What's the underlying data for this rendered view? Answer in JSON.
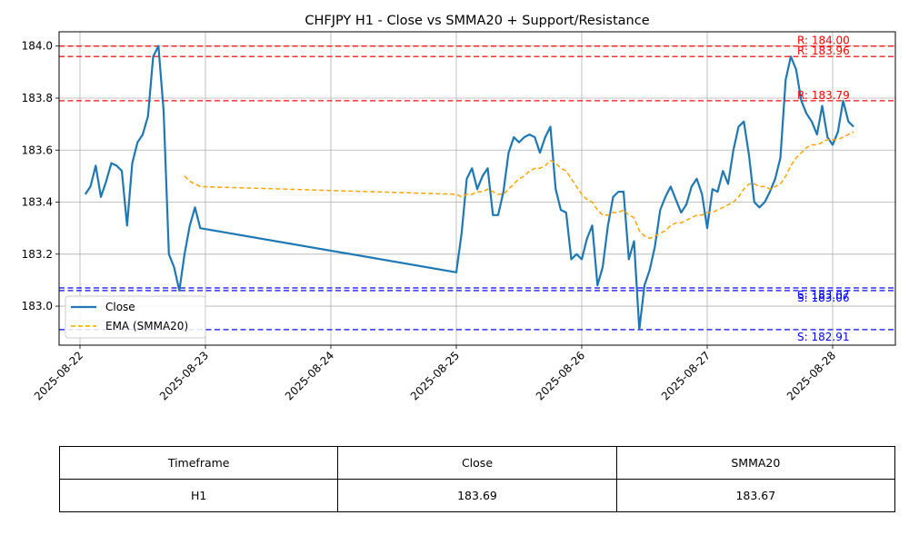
{
  "chart_data": {
    "type": "line",
    "title": "CHFJPY H1 - Close vs SMMA20 + Support/Resistance",
    "xlabel": "",
    "ylabel": "",
    "xlim": [
      "2025-08-21 20:00",
      "2025-08-28 12:00"
    ],
    "ylim": [
      182.85,
      184.055
    ],
    "grid": true,
    "legend_position": "lower-left",
    "x_ticks": [
      "2025-08-22",
      "2025-08-23",
      "2025-08-24",
      "2025-08-25",
      "2025-08-26",
      "2025-08-27",
      "2025-08-28"
    ],
    "y_ticks": [
      "183.0",
      "183.2",
      "183.4",
      "183.6",
      "183.8",
      "184.0"
    ],
    "series": [
      {
        "name": "Close",
        "color": "#1f77b4",
        "style": "solid",
        "points": [
          [
            "2025-08-22 01:00",
            183.43
          ],
          [
            "2025-08-22 02:00",
            183.46
          ],
          [
            "2025-08-22 03:00",
            183.54
          ],
          [
            "2025-08-22 04:00",
            183.42
          ],
          [
            "2025-08-22 05:00",
            183.48
          ],
          [
            "2025-08-22 06:00",
            183.55
          ],
          [
            "2025-08-22 07:00",
            183.54
          ],
          [
            "2025-08-22 08:00",
            183.52
          ],
          [
            "2025-08-22 09:00",
            183.31
          ],
          [
            "2025-08-22 10:00",
            183.55
          ],
          [
            "2025-08-22 11:00",
            183.63
          ],
          [
            "2025-08-22 12:00",
            183.66
          ],
          [
            "2025-08-22 13:00",
            183.73
          ],
          [
            "2025-08-22 14:00",
            183.96
          ],
          [
            "2025-08-22 15:00",
            184.0
          ],
          [
            "2025-08-22 16:00",
            183.75
          ],
          [
            "2025-08-22 17:00",
            183.2
          ],
          [
            "2025-08-22 18:00",
            183.15
          ],
          [
            "2025-08-22 19:00",
            183.06
          ],
          [
            "2025-08-22 20:00",
            183.2
          ],
          [
            "2025-08-22 21:00",
            183.31
          ],
          [
            "2025-08-22 22:00",
            183.38
          ],
          [
            "2025-08-22 23:00",
            183.3
          ],
          [
            "2025-08-25 00:00",
            183.13
          ],
          [
            "2025-08-25 01:00",
            183.28
          ],
          [
            "2025-08-25 02:00",
            183.49
          ],
          [
            "2025-08-25 03:00",
            183.53
          ],
          [
            "2025-08-25 04:00",
            183.45
          ],
          [
            "2025-08-25 05:00",
            183.5
          ],
          [
            "2025-08-25 06:00",
            183.53
          ],
          [
            "2025-08-25 07:00",
            183.35
          ],
          [
            "2025-08-25 08:00",
            183.35
          ],
          [
            "2025-08-25 09:00",
            183.44
          ],
          [
            "2025-08-25 10:00",
            183.59
          ],
          [
            "2025-08-25 11:00",
            183.65
          ],
          [
            "2025-08-25 12:00",
            183.63
          ],
          [
            "2025-08-25 13:00",
            183.65
          ],
          [
            "2025-08-25 14:00",
            183.66
          ],
          [
            "2025-08-25 15:00",
            183.65
          ],
          [
            "2025-08-25 16:00",
            183.59
          ],
          [
            "2025-08-25 17:00",
            183.65
          ],
          [
            "2025-08-25 18:00",
            183.69
          ],
          [
            "2025-08-25 19:00",
            183.45
          ],
          [
            "2025-08-25 20:00",
            183.37
          ],
          [
            "2025-08-25 21:00",
            183.36
          ],
          [
            "2025-08-25 22:00",
            183.18
          ],
          [
            "2025-08-25 23:00",
            183.2
          ],
          [
            "2025-08-26 00:00",
            183.18
          ],
          [
            "2025-08-26 01:00",
            183.26
          ],
          [
            "2025-08-26 02:00",
            183.31
          ],
          [
            "2025-08-26 03:00",
            183.08
          ],
          [
            "2025-08-26 04:00",
            183.15
          ],
          [
            "2025-08-26 05:00",
            183.31
          ],
          [
            "2025-08-26 06:00",
            183.42
          ],
          [
            "2025-08-26 07:00",
            183.44
          ],
          [
            "2025-08-26 08:00",
            183.44
          ],
          [
            "2025-08-26 09:00",
            183.18
          ],
          [
            "2025-08-26 10:00",
            183.25
          ],
          [
            "2025-08-26 11:00",
            182.91
          ],
          [
            "2025-08-26 12:00",
            183.08
          ],
          [
            "2025-08-26 13:00",
            183.14
          ],
          [
            "2025-08-26 14:00",
            183.23
          ],
          [
            "2025-08-26 15:00",
            183.37
          ],
          [
            "2025-08-26 16:00",
            183.42
          ],
          [
            "2025-08-26 17:00",
            183.46
          ],
          [
            "2025-08-26 18:00",
            183.41
          ],
          [
            "2025-08-26 19:00",
            183.36
          ],
          [
            "2025-08-26 20:00",
            183.39
          ],
          [
            "2025-08-26 21:00",
            183.46
          ],
          [
            "2025-08-26 22:00",
            183.49
          ],
          [
            "2025-08-26 23:00",
            183.43
          ],
          [
            "2025-08-27 00:00",
            183.3
          ],
          [
            "2025-08-27 01:00",
            183.45
          ],
          [
            "2025-08-27 02:00",
            183.44
          ],
          [
            "2025-08-27 03:00",
            183.52
          ],
          [
            "2025-08-27 04:00",
            183.47
          ],
          [
            "2025-08-27 05:00",
            183.6
          ],
          [
            "2025-08-27 06:00",
            183.69
          ],
          [
            "2025-08-27 07:00",
            183.71
          ],
          [
            "2025-08-27 08:00",
            183.58
          ],
          [
            "2025-08-27 09:00",
            183.4
          ],
          [
            "2025-08-27 10:00",
            183.38
          ],
          [
            "2025-08-27 11:00",
            183.4
          ],
          [
            "2025-08-27 12:00",
            183.44
          ],
          [
            "2025-08-27 13:00",
            183.49
          ],
          [
            "2025-08-27 14:00",
            183.57
          ],
          [
            "2025-08-27 15:00",
            183.87
          ],
          [
            "2025-08-27 16:00",
            183.96
          ],
          [
            "2025-08-27 17:00",
            183.91
          ],
          [
            "2025-08-27 18:00",
            183.79
          ],
          [
            "2025-08-27 19:00",
            183.74
          ],
          [
            "2025-08-27 20:00",
            183.71
          ],
          [
            "2025-08-27 21:00",
            183.66
          ],
          [
            "2025-08-27 22:00",
            183.77
          ],
          [
            "2025-08-27 23:00",
            183.65
          ],
          [
            "2025-08-28 00:00",
            183.62
          ],
          [
            "2025-08-28 01:00",
            183.67
          ],
          [
            "2025-08-28 02:00",
            183.79
          ],
          [
            "2025-08-28 03:00",
            183.71
          ],
          [
            "2025-08-28 04:00",
            183.69
          ]
        ]
      },
      {
        "name": "EMA (SMMA20)",
        "color": "#ffa500",
        "style": "dashed",
        "points": [
          [
            "2025-08-22 20:00",
            183.5
          ],
          [
            "2025-08-22 21:00",
            183.48
          ],
          [
            "2025-08-22 22:00",
            183.47
          ],
          [
            "2025-08-22 23:00",
            183.46
          ],
          [
            "2025-08-25 00:00",
            183.43
          ],
          [
            "2025-08-25 01:00",
            183.42
          ],
          [
            "2025-08-25 02:00",
            183.43
          ],
          [
            "2025-08-25 03:00",
            183.43
          ],
          [
            "2025-08-25 04:00",
            183.44
          ],
          [
            "2025-08-25 05:00",
            183.44
          ],
          [
            "2025-08-25 06:00",
            183.45
          ],
          [
            "2025-08-25 07:00",
            183.44
          ],
          [
            "2025-08-25 08:00",
            183.43
          ],
          [
            "2025-08-25 09:00",
            183.43
          ],
          [
            "2025-08-25 10:00",
            183.45
          ],
          [
            "2025-08-25 11:00",
            183.47
          ],
          [
            "2025-08-25 12:00",
            183.49
          ],
          [
            "2025-08-25 13:00",
            183.5
          ],
          [
            "2025-08-25 14:00",
            183.52
          ],
          [
            "2025-08-25 15:00",
            183.53
          ],
          [
            "2025-08-25 16:00",
            183.53
          ],
          [
            "2025-08-25 17:00",
            183.54
          ],
          [
            "2025-08-25 18:00",
            183.56
          ],
          [
            "2025-08-25 19:00",
            183.55
          ],
          [
            "2025-08-25 20:00",
            183.53
          ],
          [
            "2025-08-25 21:00",
            183.52
          ],
          [
            "2025-08-25 22:00",
            183.49
          ],
          [
            "2025-08-25 23:00",
            183.46
          ],
          [
            "2025-08-26 00:00",
            183.43
          ],
          [
            "2025-08-26 01:00",
            183.41
          ],
          [
            "2025-08-26 02:00",
            183.4
          ],
          [
            "2025-08-26 03:00",
            183.37
          ],
          [
            "2025-08-26 04:00",
            183.35
          ],
          [
            "2025-08-26 05:00",
            183.35
          ],
          [
            "2025-08-26 06:00",
            183.36
          ],
          [
            "2025-08-26 07:00",
            183.36
          ],
          [
            "2025-08-26 08:00",
            183.37
          ],
          [
            "2025-08-26 09:00",
            183.35
          ],
          [
            "2025-08-26 10:00",
            183.34
          ],
          [
            "2025-08-26 11:00",
            183.29
          ],
          [
            "2025-08-26 12:00",
            183.27
          ],
          [
            "2025-08-26 13:00",
            183.26
          ],
          [
            "2025-08-26 14:00",
            183.27
          ],
          [
            "2025-08-26 15:00",
            183.28
          ],
          [
            "2025-08-26 16:00",
            183.29
          ],
          [
            "2025-08-26 17:00",
            183.31
          ],
          [
            "2025-08-26 18:00",
            183.32
          ],
          [
            "2025-08-26 19:00",
            183.32
          ],
          [
            "2025-08-26 20:00",
            183.33
          ],
          [
            "2025-08-26 21:00",
            183.34
          ],
          [
            "2025-08-26 22:00",
            183.35
          ],
          [
            "2025-08-26 23:00",
            183.35
          ],
          [
            "2025-08-27 00:00",
            183.36
          ],
          [
            "2025-08-27 01:00",
            183.36
          ],
          [
            "2025-08-27 02:00",
            183.37
          ],
          [
            "2025-08-27 03:00",
            183.38
          ],
          [
            "2025-08-27 04:00",
            183.39
          ],
          [
            "2025-08-27 05:00",
            183.4
          ],
          [
            "2025-08-27 06:00",
            183.42
          ],
          [
            "2025-08-27 07:00",
            183.45
          ],
          [
            "2025-08-27 08:00",
            183.47
          ],
          [
            "2025-08-27 09:00",
            183.47
          ],
          [
            "2025-08-27 10:00",
            183.46
          ],
          [
            "2025-08-27 11:00",
            183.46
          ],
          [
            "2025-08-27 12:00",
            183.45
          ],
          [
            "2025-08-27 13:00",
            183.46
          ],
          [
            "2025-08-27 14:00",
            183.47
          ],
          [
            "2025-08-27 15:00",
            183.5
          ],
          [
            "2025-08-27 16:00",
            183.54
          ],
          [
            "2025-08-27 17:00",
            183.57
          ],
          [
            "2025-08-27 18:00",
            183.59
          ],
          [
            "2025-08-27 19:00",
            183.61
          ],
          [
            "2025-08-27 20:00",
            183.62
          ],
          [
            "2025-08-27 21:00",
            183.62
          ],
          [
            "2025-08-27 22:00",
            183.63
          ],
          [
            "2025-08-27 23:00",
            183.64
          ],
          [
            "2025-08-28 00:00",
            183.64
          ],
          [
            "2025-08-28 01:00",
            183.64
          ],
          [
            "2025-08-28 02:00",
            183.65
          ],
          [
            "2025-08-28 03:00",
            183.66
          ],
          [
            "2025-08-28 04:00",
            183.67
          ]
        ]
      }
    ],
    "resistance_levels": [
      {
        "value": 184.0,
        "label": "R: 184.00"
      },
      {
        "value": 183.96,
        "label": "R: 183.96"
      },
      {
        "value": 183.79,
        "label": "R: 183.79"
      }
    ],
    "support_levels": [
      {
        "value": 183.07,
        "label": "S: 183.07"
      },
      {
        "value": 183.06,
        "label": "S: 183.06"
      },
      {
        "value": 182.91,
        "label": "S: 182.91"
      }
    ],
    "level_colors": {
      "resistance": "#ff0000",
      "support": "#0000ff"
    }
  },
  "summary_table": {
    "headers": [
      "Timeframe",
      "Close",
      "SMMA20"
    ],
    "rows": [
      [
        "H1",
        "183.69",
        "183.67"
      ]
    ]
  }
}
